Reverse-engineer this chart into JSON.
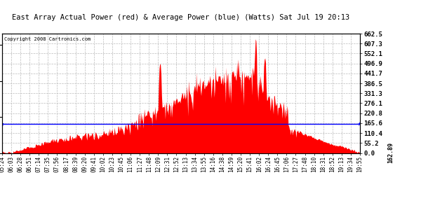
{
  "title": "East Array Actual Power (red) & Average Power (blue) (Watts) Sat Jul 19 20:13",
  "copyright": "Copyright 2008 Cartronics.com",
  "average_power": 162.89,
  "y_ticks": [
    0.0,
    55.2,
    110.4,
    165.6,
    220.8,
    276.1,
    331.3,
    386.5,
    441.7,
    496.9,
    552.1,
    607.3,
    662.5
  ],
  "x_labels": [
    "05:24",
    "06:03",
    "06:28",
    "06:51",
    "07:14",
    "07:35",
    "07:56",
    "08:17",
    "08:39",
    "09:20",
    "09:41",
    "10:02",
    "10:23",
    "10:45",
    "11:06",
    "11:27",
    "11:48",
    "12:09",
    "12:31",
    "12:52",
    "13:13",
    "13:34",
    "13:55",
    "14:16",
    "14:38",
    "14:59",
    "15:20",
    "15:41",
    "16:02",
    "16:24",
    "16:45",
    "17:06",
    "17:27",
    "17:48",
    "18:10",
    "18:31",
    "18:52",
    "19:13",
    "19:34",
    "19:55"
  ],
  "background_color": "#ffffff",
  "fill_color": "#ff0000",
  "line_color": "#0000ff",
  "grid_color": "#bbbbbb",
  "title_fontsize": 9,
  "copyright_fontsize": 6
}
